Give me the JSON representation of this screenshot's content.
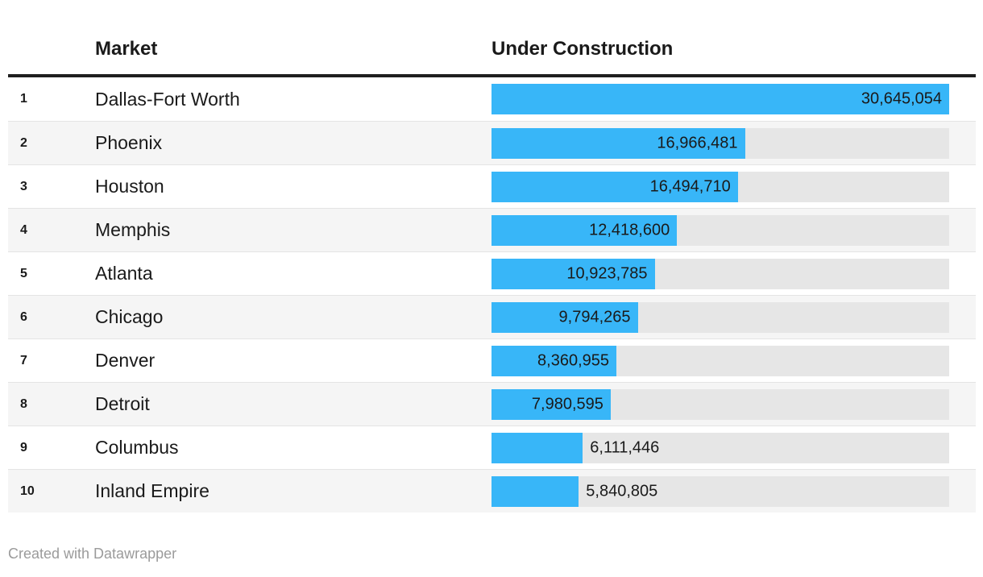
{
  "colors": {
    "bar": "#38b6f8",
    "bar_track": "#e6e6e6",
    "row_stripe": "#f5f5f5",
    "row_divider": "#e4e4e4",
    "header_rule": "#1f1f1f",
    "text": "#1a1a1a",
    "footer_text": "#9b9b9b"
  },
  "table": {
    "columns": {
      "market": "Market",
      "under_construction": "Under Construction"
    },
    "rows": [
      {
        "rank": "1",
        "market": "Dallas-Fort Worth",
        "value": 30645054,
        "value_label": "30,645,054"
      },
      {
        "rank": "2",
        "market": "Phoenix",
        "value": 16966481,
        "value_label": "16,966,481"
      },
      {
        "rank": "3",
        "market": "Houston",
        "value": 16494710,
        "value_label": "16,494,710"
      },
      {
        "rank": "4",
        "market": "Memphis",
        "value": 12418600,
        "value_label": "12,418,600"
      },
      {
        "rank": "5",
        "market": "Atlanta",
        "value": 10923785,
        "value_label": "10,923,785"
      },
      {
        "rank": "6",
        "market": "Chicago",
        "value": 9794265,
        "value_label": "9,794,265"
      },
      {
        "rank": "7",
        "market": "Denver",
        "value": 8360955,
        "value_label": "8,360,955"
      },
      {
        "rank": "8",
        "market": "Detroit",
        "value": 7980595,
        "value_label": "7,980,595"
      },
      {
        "rank": "9",
        "market": "Columbus",
        "value": 6111446,
        "value_label": "6,111,446"
      },
      {
        "rank": "10",
        "market": "Inland Empire",
        "value": 5840805,
        "value_label": "5,840,805"
      }
    ]
  },
  "footer": {
    "credit": "Created with Datawrapper"
  },
  "chart_data": {
    "type": "bar",
    "orientation": "horizontal",
    "title": "",
    "xlabel": "Under Construction",
    "ylabel": "Market",
    "categories": [
      "Dallas-Fort Worth",
      "Phoenix",
      "Houston",
      "Memphis",
      "Atlanta",
      "Chicago",
      "Denver",
      "Detroit",
      "Columbus",
      "Inland Empire"
    ],
    "ranks": [
      1,
      2,
      3,
      4,
      5,
      6,
      7,
      8,
      9,
      10
    ],
    "values": [
      30645054,
      16966481,
      16494710,
      12418600,
      10923785,
      9794265,
      8360955,
      7980595,
      6111446,
      5840805
    ],
    "value_labels": [
      "30,645,054",
      "16,966,481",
      "16,494,710",
      "12,418,600",
      "10,923,785",
      "9,794,265",
      "8,360,955",
      "7,980,595",
      "6,111,446",
      "5,840,805"
    ],
    "xlim": [
      0,
      30645054
    ],
    "grid": false,
    "legend_position": "none",
    "bar_color": "#38b6f8"
  }
}
